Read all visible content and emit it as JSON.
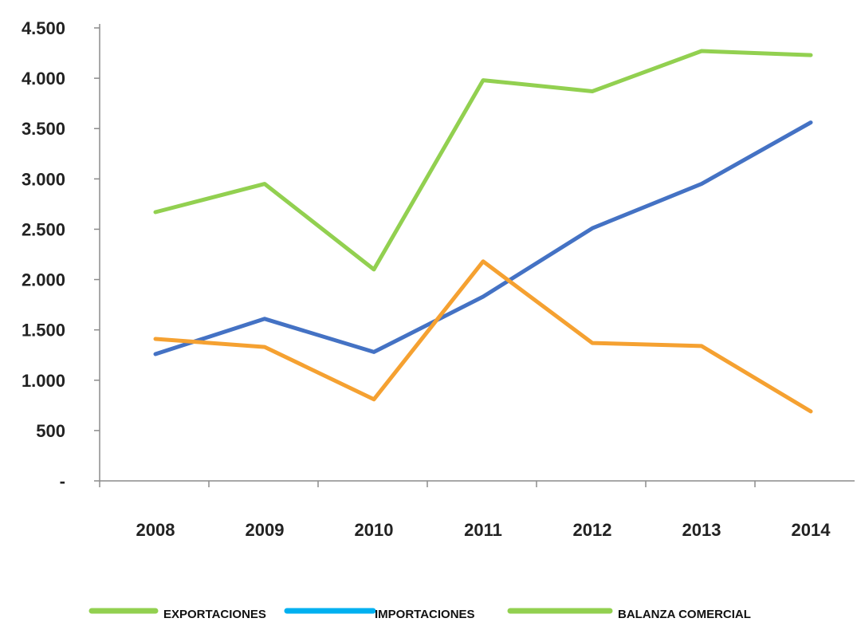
{
  "chart_data": {
    "type": "line",
    "categories": [
      "2008",
      "2009",
      "2010",
      "2011",
      "2012",
      "2013",
      "2014"
    ],
    "ylim": [
      0,
      4500
    ],
    "yticks": [
      0,
      500,
      1000,
      1500,
      2000,
      2500,
      3000,
      3500,
      4000,
      4500
    ],
    "ytick_labels": [
      "-",
      "500",
      "1.000",
      "1.500",
      "2.000",
      "2.500",
      "3.000",
      "3.500",
      "4.000",
      "4.500"
    ],
    "grid": false,
    "legend_position": "bottom",
    "series": [
      {
        "name": "EXPORTACIONES",
        "color": "#92d050",
        "values": [
          2670,
          2950,
          2100,
          3980,
          3870,
          4270,
          4230
        ]
      },
      {
        "name": "IMPORTACIONES",
        "color": "#4472c4",
        "legend_color": "#00b0f0",
        "values": [
          1260,
          1610,
          1280,
          1830,
          2510,
          2950,
          3560
        ]
      },
      {
        "name": "BALANZA COMERCIAL",
        "color": "#f5a131",
        "legend_color": "#92d050",
        "values": [
          1410,
          1330,
          810,
          2180,
          1370,
          1340,
          690
        ]
      }
    ]
  }
}
